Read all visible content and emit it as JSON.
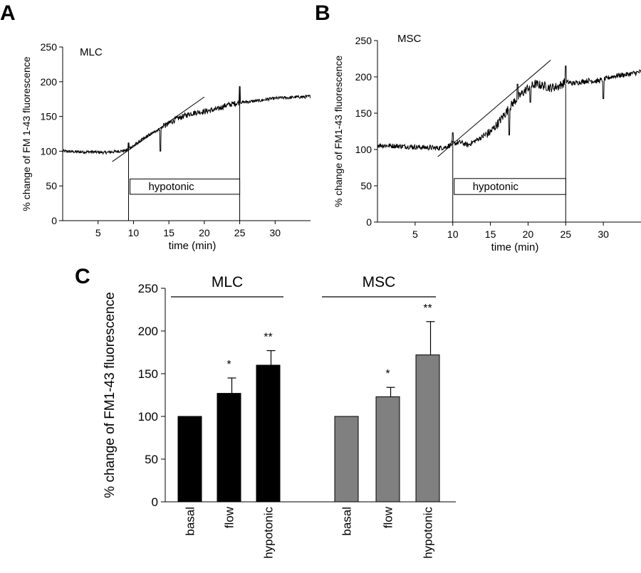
{
  "chart_data": [
    {
      "type": "line",
      "panel": "A",
      "inset_label": "MLC",
      "xlabel": "time (min)",
      "ylabel": "% change of FM 1-43 fluorescence",
      "xlim": [
        0,
        35
      ],
      "ylim": [
        0,
        250
      ],
      "x_ticks": [
        5,
        10,
        15,
        20,
        25,
        30
      ],
      "y_ticks": [
        0,
        50,
        100,
        150,
        200,
        250
      ],
      "stimulus": {
        "label": "hypotonic",
        "start": 9.3,
        "end": 25
      },
      "series": [
        {
          "x": [
            0,
            2,
            4,
            6,
            8,
            9,
            9.3,
            10,
            11,
            12,
            13,
            14,
            15,
            16,
            17,
            18,
            19,
            20,
            21,
            22,
            23,
            24,
            25,
            26,
            27,
            28,
            29,
            30,
            31,
            32,
            33,
            34,
            35
          ],
          "y": [
            100,
            99,
            99,
            98,
            100,
            101,
            104,
            108,
            115,
            122,
            128,
            134,
            140,
            146,
            150,
            154,
            156,
            157,
            159,
            161,
            166,
            168,
            170,
            171,
            172,
            173,
            175,
            176,
            177,
            177,
            178,
            178,
            179
          ]
        }
      ],
      "fit_line": {
        "x": [
          7,
          20
        ],
        "y": [
          85,
          178
        ]
      }
    },
    {
      "type": "line",
      "panel": "B",
      "inset_label": "MSC",
      "xlabel": "time (min)",
      "ylabel": "% change of FM1-43 fluorescence",
      "xlim": [
        0,
        35
      ],
      "ylim": [
        0,
        250
      ],
      "x_ticks": [
        5,
        10,
        15,
        20,
        25,
        30
      ],
      "y_ticks": [
        0,
        50,
        100,
        150,
        200,
        250
      ],
      "stimulus": {
        "label": "hypotonic",
        "start": 10,
        "end": 25
      },
      "series": [
        {
          "x": [
            0,
            2,
            4,
            6,
            8,
            9,
            10,
            11,
            12,
            13,
            14,
            15,
            16,
            17,
            18,
            19,
            20,
            21,
            22,
            23,
            24,
            25,
            26,
            27,
            28,
            29,
            30,
            31,
            32,
            33,
            34,
            35
          ],
          "y": [
            106,
            105,
            104,
            103,
            102,
            103,
            108,
            110,
            106,
            112,
            118,
            124,
            136,
            150,
            164,
            175,
            185,
            190,
            188,
            185,
            187,
            193,
            191,
            193,
            195,
            194,
            196,
            200,
            202,
            203,
            205,
            207
          ]
        }
      ],
      "fit_line": {
        "x": [
          8,
          23
        ],
        "y": [
          90,
          223
        ]
      }
    },
    {
      "type": "bar",
      "panel": "C",
      "ylabel": "% change of FM1-43 fluorescence",
      "ylim": [
        0,
        250
      ],
      "y_ticks": [
        0,
        50,
        100,
        150,
        200,
        250
      ],
      "groups": [
        {
          "name": "MLC",
          "color": "#000000",
          "categories": [
            "basal",
            "flow",
            "hypotonic"
          ],
          "values": [
            100,
            127,
            160
          ],
          "errors": [
            0,
            18,
            17
          ],
          "significance": [
            "",
            "*",
            "**"
          ]
        },
        {
          "name": "MSC",
          "color": "#808080",
          "categories": [
            "basal",
            "flow",
            "hypotonic"
          ],
          "values": [
            100,
            123,
            172
          ],
          "errors": [
            0,
            11,
            39
          ],
          "significance": [
            "",
            "*",
            "**"
          ]
        }
      ]
    }
  ]
}
